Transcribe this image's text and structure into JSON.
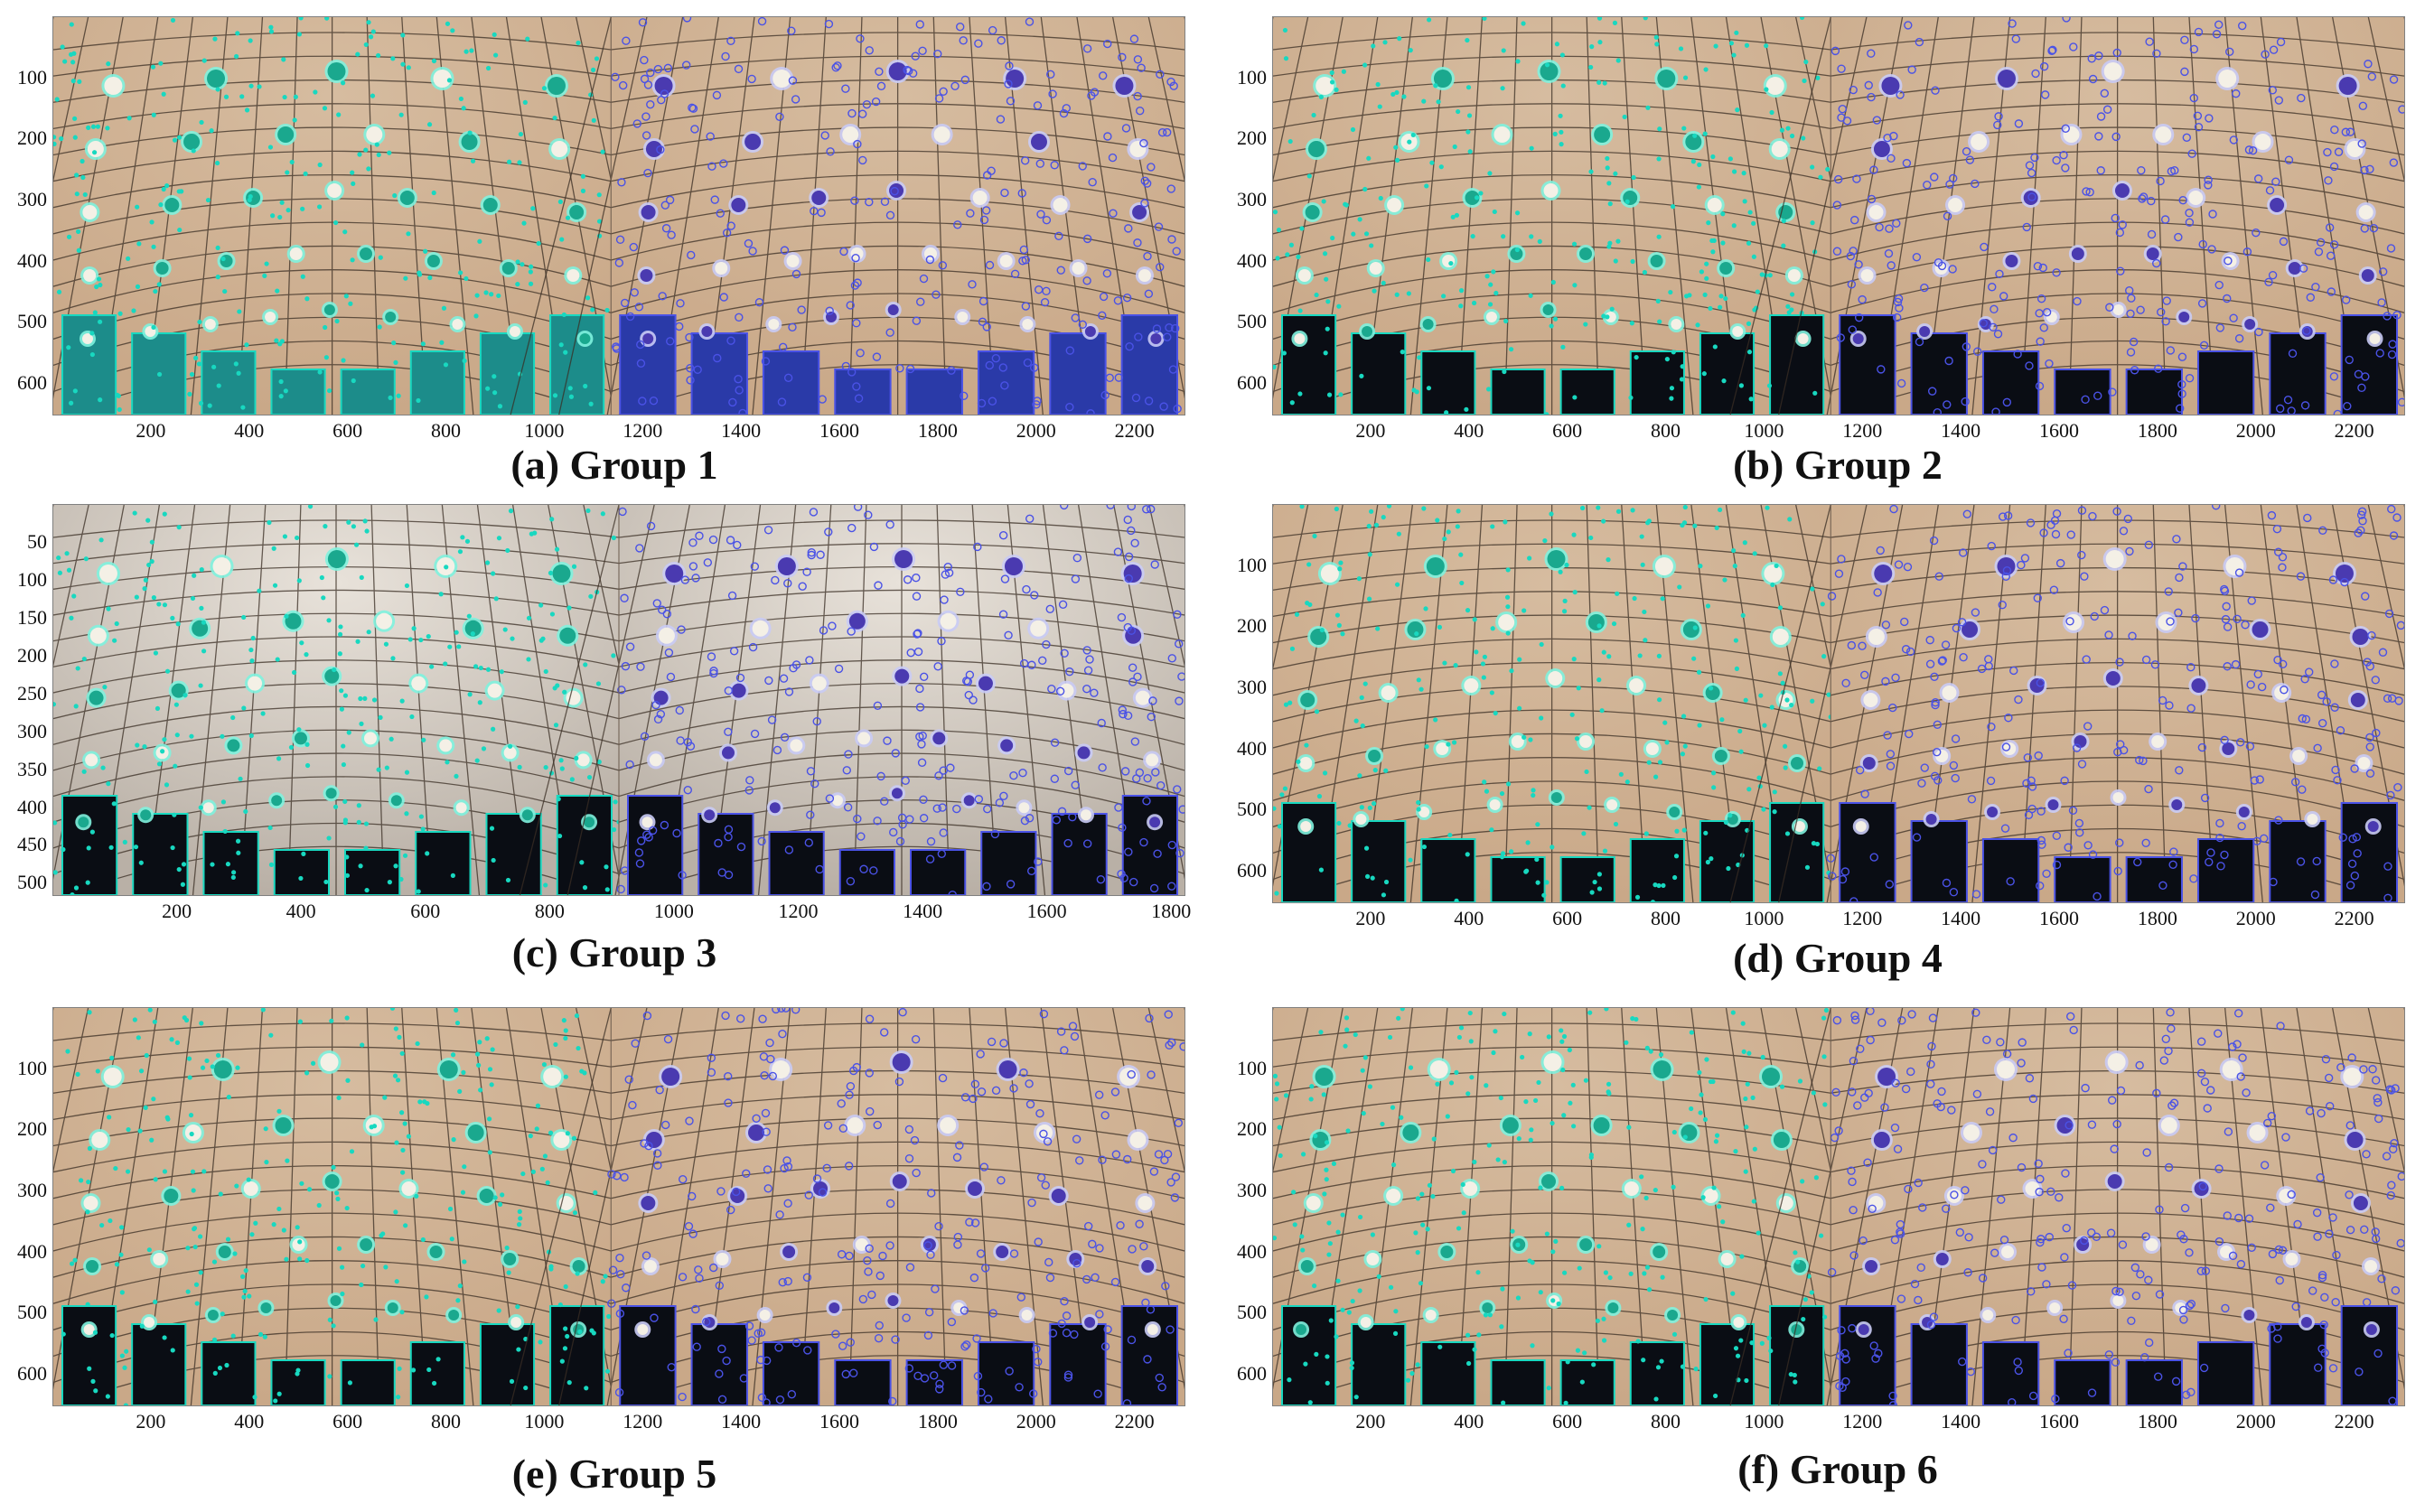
{
  "panels": [
    {
      "caption": "(a) Group 1",
      "x_ticks": [
        "200",
        "400",
        "600",
        "800",
        "1000",
        "1200",
        "1400",
        "1600",
        "1800",
        "2000",
        "2200"
      ],
      "y_ticks": [
        "100",
        "200",
        "300",
        "400",
        "500",
        "600"
      ],
      "x_range": [
        0,
        2300
      ],
      "y_range": [
        0,
        650
      ]
    },
    {
      "caption": "(b) Group 2",
      "x_ticks": [
        "200",
        "400",
        "600",
        "800",
        "1000",
        "1200",
        "1400",
        "1600",
        "1800",
        "2000",
        "2200"
      ],
      "y_ticks": [
        "100",
        "200",
        "300",
        "400",
        "500",
        "600"
      ],
      "x_range": [
        0,
        2300
      ],
      "y_range": [
        0,
        650
      ]
    },
    {
      "caption": "(c) Group 3",
      "x_ticks": [
        "200",
        "400",
        "600",
        "800",
        "1000",
        "1200",
        "1400",
        "1600",
        "1800"
      ],
      "y_ticks": [
        "50",
        "100",
        "150",
        "200",
        "250",
        "300",
        "350",
        "400",
        "450",
        "500"
      ],
      "x_range": [
        0,
        1820
      ],
      "y_range": [
        0,
        515
      ]
    },
    {
      "caption": "(d) Group 4",
      "x_ticks": [
        "200",
        "400",
        "600",
        "800",
        "1000",
        "1200",
        "1400",
        "1600",
        "1800",
        "2000",
        "2200"
      ],
      "y_ticks": [
        "100",
        "200",
        "300",
        "400",
        "500",
        "600"
      ],
      "x_range": [
        0,
        2300
      ],
      "y_range": [
        0,
        650
      ]
    },
    {
      "caption": "(e) Group 5",
      "x_ticks": [
        "200",
        "400",
        "600",
        "800",
        "1000",
        "1200",
        "1400",
        "1600",
        "1800",
        "2000",
        "2200"
      ],
      "y_ticks": [
        "100",
        "200",
        "300",
        "400",
        "500",
        "600"
      ],
      "x_range": [
        0,
        2300
      ],
      "y_range": [
        0,
        650
      ]
    },
    {
      "caption": "(f) Group 6",
      "x_ticks": [
        "200",
        "400",
        "600",
        "800",
        "1000",
        "1200",
        "1400",
        "1600",
        "1800",
        "2000",
        "2200"
      ],
      "y_ticks": [
        "100",
        "200",
        "300",
        "400",
        "500",
        "600"
      ],
      "x_range": [
        0,
        2300
      ],
      "y_range": [
        0,
        650
      ]
    }
  ],
  "colors": {
    "left_markers": "#18d8c0",
    "right_markers": "#4a52e6",
    "ceiling": "#c9a888",
    "window": "#0a0d14",
    "grid": "#3a2e24"
  }
}
